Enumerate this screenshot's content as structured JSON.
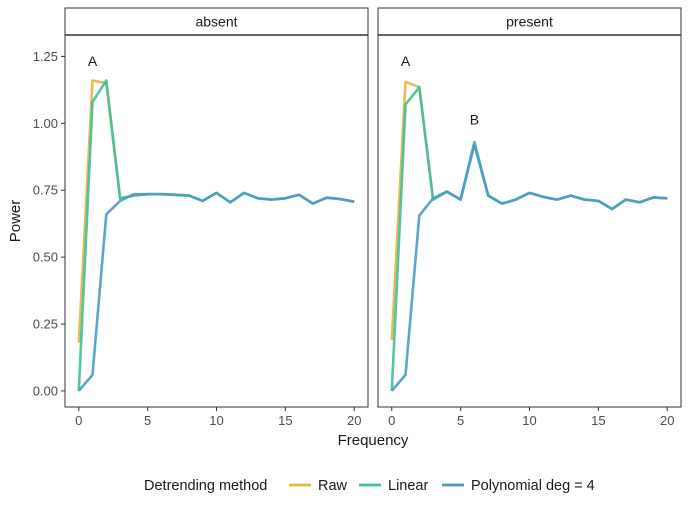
{
  "chart_data": {
    "type": "line",
    "xlabel": "Frequency",
    "ylabel": "Power",
    "xlim": [
      -1,
      21
    ],
    "ylim": [
      -0.06,
      1.33
    ],
    "xticks": [
      0,
      5,
      10,
      15,
      20
    ],
    "xtick_labels": [
      "0",
      "5",
      "10",
      "15",
      "20"
    ],
    "yticks": [
      0,
      0.25,
      0.5,
      0.75,
      1.0,
      1.25
    ],
    "ytick_labels": [
      "0.00",
      "0.25",
      "0.50",
      "0.75",
      "1.00",
      "1.25"
    ],
    "legend": {
      "title": "Detrending method",
      "position": "bottom",
      "entries": [
        {
          "name": "Raw",
          "color": "#E9B440"
        },
        {
          "name": "Linear",
          "color": "#3FBF9A"
        },
        {
          "name": "Polynomial deg = 4",
          "color": "#4A9CC8"
        }
      ]
    },
    "x": [
      0,
      1,
      2,
      3,
      4,
      5,
      6,
      7,
      8,
      9,
      10,
      11,
      12,
      13,
      14,
      15,
      16,
      17,
      18,
      19,
      20
    ],
    "panels": [
      {
        "strip": "absent",
        "series": [
          {
            "name": "Raw",
            "color": "#E9B440",
            "values": [
              0.18,
              1.16,
              1.15,
              0.72,
              0.73,
              0.735,
              0.735,
              0.733,
              0.73,
              0.71,
              0.74,
              0.705,
              0.74,
              0.72,
              0.715,
              0.72,
              0.733,
              0.7,
              0.722,
              0.717,
              0.707
            ]
          },
          {
            "name": "Linear",
            "color": "#3FBF9A",
            "values": [
              0.0,
              1.08,
              1.16,
              0.72,
              0.73,
              0.735,
              0.735,
              0.733,
              0.73,
              0.71,
              0.74,
              0.705,
              0.74,
              0.72,
              0.715,
              0.72,
              0.733,
              0.7,
              0.722,
              0.717,
              0.707
            ]
          },
          {
            "name": "Polynomial deg = 4",
            "color": "#4A9CC8",
            "values": [
              0.0,
              0.06,
              0.66,
              0.71,
              0.735,
              0.735,
              0.735,
              0.733,
              0.73,
              0.71,
              0.74,
              0.705,
              0.74,
              0.72,
              0.715,
              0.72,
              0.733,
              0.7,
              0.722,
              0.717,
              0.707
            ]
          }
        ],
        "annotations": [
          {
            "text": "A",
            "x": 1,
            "y": 1.215
          }
        ]
      },
      {
        "strip": "present",
        "series": [
          {
            "name": "Raw",
            "color": "#E9B440",
            "values": [
              0.19,
              1.155,
              1.135,
              0.715,
              0.745,
              0.715,
              0.93,
              0.73,
              0.7,
              0.715,
              0.74,
              0.725,
              0.715,
              0.73,
              0.715,
              0.71,
              0.68,
              0.715,
              0.705,
              0.723,
              0.72
            ]
          },
          {
            "name": "Linear",
            "color": "#3FBF9A",
            "values": [
              0.0,
              1.07,
              1.135,
              0.715,
              0.745,
              0.715,
              0.93,
              0.73,
              0.7,
              0.715,
              0.74,
              0.725,
              0.715,
              0.73,
              0.715,
              0.71,
              0.68,
              0.715,
              0.705,
              0.723,
              0.72
            ]
          },
          {
            "name": "Polynomial deg = 4",
            "color": "#4A9CC8",
            "values": [
              0.0,
              0.06,
              0.655,
              0.72,
              0.745,
              0.715,
              0.92,
              0.73,
              0.7,
              0.715,
              0.74,
              0.725,
              0.715,
              0.73,
              0.715,
              0.71,
              0.68,
              0.715,
              0.705,
              0.723,
              0.72
            ]
          }
        ],
        "annotations": [
          {
            "text": "A",
            "x": 1,
            "y": 1.215
          },
          {
            "text": "B",
            "x": 6,
            "y": 0.995
          }
        ]
      }
    ]
  }
}
